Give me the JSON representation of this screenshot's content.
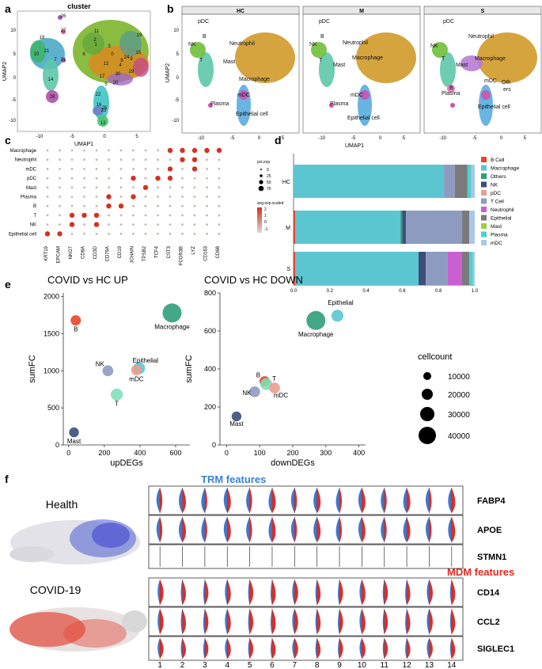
{
  "panel_labels": {
    "a": "a",
    "b": "b",
    "c": "c",
    "d": "d",
    "e": "e",
    "f": "f"
  },
  "panel_a": {
    "title": "cluster",
    "xlabel": "UMAP1",
    "ylabel": "UMAP2",
    "xticks": [
      "-10",
      "-5",
      "0",
      "5"
    ],
    "yticks": [
      "10",
      "5",
      "0",
      "-5",
      "-10"
    ],
    "cluster_labels": [
      "0",
      "1",
      "2",
      "3",
      "4",
      "5",
      "6",
      "7",
      "8",
      "9",
      "10",
      "11",
      "12",
      "13",
      "14",
      "15",
      "16",
      "17",
      "18",
      "19",
      "20",
      "21",
      "22",
      "23",
      "24",
      "25",
      "26",
      "27",
      "28",
      "29",
      "30",
      "31"
    ]
  },
  "panel_b": {
    "facets": [
      {
        "title": "HC",
        "labels": [
          "pDC",
          "B",
          "NK",
          "Neutrophil",
          "T",
          "Mast",
          "Macrophage",
          "mDC",
          "Plasma",
          "Epithelial cell"
        ]
      },
      {
        "title": "M",
        "labels": [
          "pDC",
          "B",
          "NK",
          "Neutrophil",
          "Macrophage",
          "T",
          "Mast",
          "mDC",
          "Plasma",
          "Epithelial cell"
        ]
      },
      {
        "title": "S",
        "labels": [
          "pDC",
          "B",
          "NK",
          "Neutrophil",
          "Macrophage",
          "T",
          "Mast",
          "mDC",
          "Oth",
          "ers",
          "Plasma",
          "Epithelial cell"
        ]
      }
    ],
    "xlabel": "UMAP1",
    "ylabel": "UMAP2",
    "xticks": [
      "-10",
      "-5",
      "0",
      "5"
    ],
    "yticks": [
      "10",
      "5",
      "0",
      "-5",
      "-10"
    ]
  },
  "chart_data": [
    {
      "id": "c",
      "type": "scatter",
      "subtype": "dotplot",
      "rows": [
        "Macrophage",
        "Neutrophil",
        "mDC",
        "pDC",
        "Mast",
        "Plasma",
        "B",
        "T",
        "NK",
        "Epithelial cell"
      ],
      "cols": [
        "KRT19",
        "EPCAM",
        "NKG7",
        "CD8A",
        "CD3D",
        "CD79A",
        "CD19",
        "JCHAIN",
        "TPSB2",
        "TCF4",
        "CST3",
        "FCGR3B",
        "LYZ",
        "CD163",
        "CD68"
      ],
      "legend_size_title": "pct.exp",
      "legend_size_values": [
        "0",
        "25",
        "50",
        "75"
      ],
      "legend_color_title": "avg.exp.scaled",
      "legend_color_values": [
        "2",
        "1",
        "0",
        "-1"
      ],
      "high_expression": {
        "Macrophage": [
          "CST3",
          "FCGR3B",
          "LYZ",
          "CD163",
          "CD68"
        ],
        "Neutrophil": [
          "FCGR3B",
          "LYZ"
        ],
        "mDC": [
          "CST3",
          "LYZ"
        ],
        "pDC": [
          "JCHAIN",
          "TCF4",
          "CST3"
        ],
        "Mast": [
          "TPSB2"
        ],
        "Plasma": [
          "CD79A",
          "JCHAIN"
        ],
        "B": [
          "CD79A",
          "CD19"
        ],
        "T": [
          "NKG7",
          "CD8A",
          "CD3D"
        ],
        "NK": [
          "NKG7",
          "CD3D"
        ],
        "Epithelial cell": [
          "KRT19",
          "EPCAM"
        ]
      }
    },
    {
      "id": "d",
      "type": "bar",
      "orientation": "horizontal-stacked",
      "categories": [
        "HC",
        "M",
        "S"
      ],
      "series": [
        {
          "name": "B Cell",
          "color": "#e8452c",
          "values": [
            0.0,
            0.01,
            0.01
          ]
        },
        {
          "name": "Macrophage",
          "color": "#5bc6d0",
          "values": [
            0.83,
            0.58,
            0.68
          ]
        },
        {
          "name": "Others",
          "color": "#2e9f7a",
          "values": [
            0.0,
            0.01,
            0.0
          ]
        },
        {
          "name": "NK",
          "color": "#3d4e7a",
          "values": [
            0.0,
            0.02,
            0.04
          ]
        },
        {
          "name": "pDC",
          "color": "#e8a090",
          "values": [
            0.0,
            0.0,
            0.0
          ]
        },
        {
          "name": "T Cell",
          "color": "#8e9bc0",
          "values": [
            0.06,
            0.31,
            0.12
          ]
        },
        {
          "name": "Neutrophil",
          "color": "#c95fd0",
          "values": [
            0.0,
            0.0,
            0.08
          ]
        },
        {
          "name": "Epithelial",
          "color": "#7a7a7a",
          "values": [
            0.07,
            0.04,
            0.04
          ]
        },
        {
          "name": "Mast",
          "color": "#a3cc3c",
          "values": [
            0.0,
            0.0,
            0.0
          ]
        },
        {
          "name": "Plasma",
          "color": "#4ecfcf",
          "values": [
            0.02,
            0.0,
            0.02
          ]
        },
        {
          "name": "mDC",
          "color": "#a9c7e8",
          "values": [
            0.02,
            0.03,
            0.01
          ]
        }
      ],
      "xticks": [
        "0.0",
        "0.2",
        "0.4",
        "0.6",
        "0.8",
        "1.0"
      ],
      "xlim": [
        0,
        1
      ]
    },
    {
      "id": "e1",
      "type": "scatter",
      "title": "COVID vs HC UP",
      "xlabel": "upDEGs",
      "ylabel": "sumFC",
      "xlim": [
        -30,
        680
      ],
      "ylim": [
        0,
        2050
      ],
      "xticks": [
        "0",
        "200",
        "400",
        "600"
      ],
      "yticks": [
        "0",
        "500",
        "1000",
        "1500",
        "2000"
      ],
      "points": [
        {
          "label": "B",
          "x": 40,
          "y": 1680,
          "cellcount": 4000,
          "color": "#e8452c"
        },
        {
          "label": "Macrophage",
          "x": 580,
          "y": 1780,
          "cellcount": 40000,
          "color": "#2e9f7a"
        },
        {
          "label": "NK",
          "x": 220,
          "y": 1000,
          "cellcount": 5000,
          "color": "#8e9bc0"
        },
        {
          "label": "Epithelial",
          "x": 395,
          "y": 1035,
          "cellcount": 8000,
          "color": "#5bc6d0"
        },
        {
          "label": "mDC",
          "x": 380,
          "y": 1010,
          "cellcount": 4500,
          "color": "#e8a090"
        },
        {
          "label": "T",
          "x": 270,
          "y": 680,
          "cellcount": 8000,
          "color": "#7fe0b8"
        },
        {
          "label": "Mast",
          "x": 30,
          "y": 170,
          "cellcount": 3000,
          "color": "#3d4e7a"
        }
      ]
    },
    {
      "id": "e2",
      "type": "scatter",
      "title": "COVID vs HC DOWN",
      "xlabel": "downDEGs",
      "ylabel": "sumFC",
      "xlim": [
        -20,
        420
      ],
      "ylim": [
        0,
        800
      ],
      "xticks": [
        "0",
        "100",
        "200",
        "300",
        "400"
      ],
      "yticks": [
        "0",
        "200",
        "400",
        "600",
        "800"
      ],
      "points": [
        {
          "label": "Epithelial",
          "x": 335,
          "y": 680,
          "cellcount": 8000,
          "color": "#5bc6d0"
        },
        {
          "label": "Macrophage",
          "x": 270,
          "y": 655,
          "cellcount": 40000,
          "color": "#2e9f7a"
        },
        {
          "label": "B",
          "x": 115,
          "y": 335,
          "cellcount": 4000,
          "color": "#e8452c"
        },
        {
          "label": "T",
          "x": 120,
          "y": 320,
          "cellcount": 8000,
          "color": "#7fe0b8"
        },
        {
          "label": "mDC",
          "x": 145,
          "y": 300,
          "cellcount": 5000,
          "color": "#e8a090"
        },
        {
          "label": "NK",
          "x": 85,
          "y": 280,
          "cellcount": 5000,
          "color": "#8e9bc0"
        },
        {
          "label": "Mast",
          "x": 30,
          "y": 150,
          "cellcount": 3000,
          "color": "#3d4e7a"
        }
      ],
      "legend_title": "cellcount",
      "legend_values": [
        "10000",
        "20000",
        "30000",
        "40000"
      ]
    }
  ],
  "panel_f": {
    "health_label": "Health",
    "covid_label": "COVID-19",
    "trm_title": "TRM features",
    "mdm_title": "MDM features",
    "trm_genes": [
      "FABP4",
      "APOE",
      "STMN1"
    ],
    "mdm_genes": [
      "CD14",
      "CCL2",
      "SIGLEC1"
    ],
    "clusters": [
      "1",
      "2",
      "3",
      "4",
      "5",
      "6",
      "7",
      "8",
      "9",
      "10",
      "11",
      "12",
      "13",
      "14"
    ],
    "colors": {
      "health": "#3a6fc4",
      "covid": "#d8241c"
    }
  }
}
